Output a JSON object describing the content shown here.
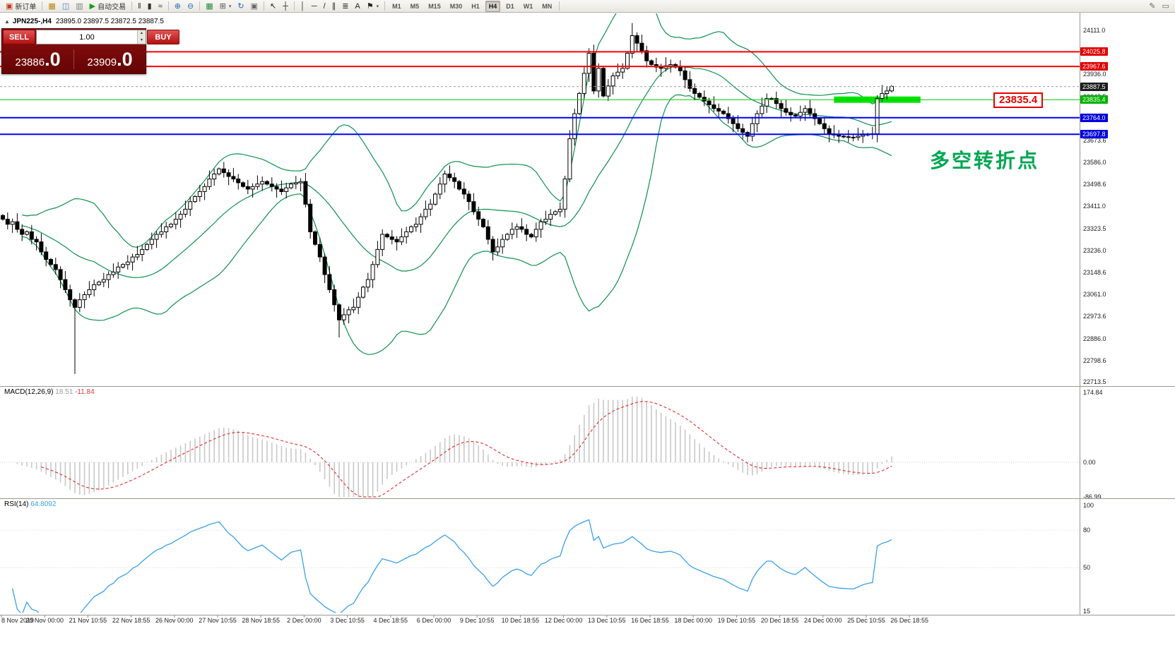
{
  "toolbar": {
    "items": [
      {
        "n": "new-order-button",
        "g": "▣",
        "c": "#c0392b",
        "t": "新订单"
      },
      {
        "sep": true
      },
      {
        "n": "chart-window-button",
        "g": "▦",
        "c": "#b8860b"
      },
      {
        "n": "profiles-button",
        "g": "◫",
        "c": "#3d7dbf"
      },
      {
        "n": "data-window-button",
        "g": "▥",
        "c": "#808080"
      },
      {
        "n": "auto-trading-button",
        "g": "▶",
        "c": "#17a017",
        "t": "自动交易"
      },
      {
        "sep": true
      },
      {
        "n": "bars-chart-button",
        "g": "‖",
        "c": "#333333"
      },
      {
        "n": "candlestick-chart-button",
        "g": "▮",
        "c": "#333333"
      },
      {
        "n": "line-chart-button",
        "g": "≈",
        "c": "#333333"
      },
      {
        "sep": true
      },
      {
        "n": "zoom-in-button",
        "g": "⊕",
        "c": "#2a6db5"
      },
      {
        "n": "zoom-out-button",
        "g": "⊖",
        "c": "#2a6db5"
      },
      {
        "sep": true
      },
      {
        "n": "tile-windows-button",
        "g": "▦",
        "c": "#2a8a3a"
      },
      {
        "n": "new-chart-button",
        "g": "⊞",
        "c": "#555555",
        "caret": true
      },
      {
        "n": "refresh-button",
        "g": "↻",
        "c": "#1565c0"
      },
      {
        "n": "snapshot-button",
        "g": "▣",
        "c": "#666666"
      },
      {
        "sep": true
      },
      {
        "n": "cursor-button",
        "g": "↖",
        "c": "#222222"
      },
      {
        "n": "crosshair-button",
        "g": "┼",
        "c": "#222222"
      },
      {
        "sep": true
      },
      {
        "n": "vertical-line-button",
        "g": "│",
        "c": "#222222"
      },
      {
        "n": "horizontal-line-button",
        "g": "─",
        "c": "#222222"
      },
      {
        "n": "trendline-button",
        "g": "/",
        "c": "#222222"
      },
      {
        "n": "channel-button",
        "g": "∥",
        "c": "#222222"
      },
      {
        "n": "fibonacci-button",
        "g": "≣",
        "c": "#222222"
      },
      {
        "n": "text-button",
        "g": "A",
        "c": "#222222"
      },
      {
        "n": "arrows-button",
        "g": "⚑",
        "c": "#222222",
        "caret": true
      },
      {
        "sep": true
      },
      {
        "tf": true
      },
      {
        "sep": true
      }
    ],
    "timeframes": [
      "M1",
      "M5",
      "M15",
      "M30",
      "H1",
      "H4",
      "D1",
      "W1",
      "MN"
    ],
    "active_timeframe": "H4",
    "right_items": [
      {
        "n": "pencil-button",
        "g": "✎",
        "c": "#666666"
      },
      {
        "n": "docking-button",
        "g": "▭",
        "c": "#666666"
      }
    ]
  },
  "trade_panel": {
    "sell_label": "SELL",
    "buy_label": "BUY",
    "volume": "1.00",
    "spin_up_icon": "▴",
    "spin_down_icon": "▾",
    "sell_price_main": "23886",
    "sell_price_frac": ".0",
    "buy_price_main": "23909",
    "buy_price_frac": ".0"
  },
  "chart": {
    "collapse_icon": "▲",
    "symbol": "JPN225-,H4",
    "ohlc_text": "23895.0 23897.5 23872.5 23887.5",
    "annotation": "多空转折点",
    "annotation_color": "#00a651",
    "price_flag": "23835.4",
    "price_flag_color": "#e60000"
  },
  "chart_data": {
    "type": "candlestick",
    "symbol": "JPN225-",
    "timeframe": "H4",
    "ohlc": {
      "open": 23895.0,
      "high": 23897.5,
      "low": 23872.5,
      "close": 23887.5
    },
    "y_range": {
      "top": 24111.0,
      "bottom": 22713.5
    },
    "price_axis_labels": [
      24111.0,
      24023.5,
      23936.0,
      23848.5,
      23761.0,
      23673.6,
      23586.0,
      23498.6,
      23411.0,
      23323.5,
      23236.0,
      23148.6,
      23061.0,
      22973.6,
      22886.0,
      22798.6,
      22713.5
    ],
    "closes": [
      23360,
      23340,
      23350,
      23320,
      23300,
      23310,
      23280,
      23270,
      23230,
      23200,
      23180,
      23160,
      23120,
      23080,
      23040,
      23010,
      23040,
      23060,
      23080,
      23100,
      23110,
      23120,
      23140,
      23150,
      23170,
      23180,
      23190,
      23210,
      23220,
      23240,
      23260,
      23280,
      23300,
      23310,
      23330,
      23340,
      23360,
      23380,
      23400,
      23430,
      23450,
      23470,
      23490,
      23520,
      23540,
      23560,
      23545,
      23530,
      23520,
      23505,
      23490,
      23480,
      23490,
      23500,
      23510,
      23500,
      23490,
      23480,
      23470,
      23485,
      23500,
      23505,
      23510,
      23420,
      23310,
      23260,
      23210,
      23140,
      23080,
      23020,
      22960,
      22980,
      23000,
      23010,
      23050,
      23090,
      23120,
      23180,
      23240,
      23300,
      23290,
      23280,
      23270,
      23290,
      23310,
      23330,
      23340,
      23370,
      23400,
      23420,
      23460,
      23500,
      23540,
      23525,
      23510,
      23480,
      23460,
      23430,
      23390,
      23360,
      23330,
      23280,
      23230,
      23250,
      23280,
      23300,
      23320,
      23330,
      23320,
      23300,
      23290,
      23320,
      23350,
      23360,
      23380,
      23390,
      23400,
      23520,
      23680,
      23780,
      23860,
      23940,
      24020,
      23870,
      23960,
      23850,
      23890,
      23930,
      23945,
      23960,
      24020,
      24090,
      24060,
      24030,
      23990,
      23975,
      23965,
      23960,
      23970,
      23975,
      23965,
      23950,
      23915,
      23880,
      23860,
      23845,
      23830,
      23815,
      23800,
      23790,
      23780,
      23760,
      23740,
      23720,
      23705,
      23690,
      23740,
      23780,
      23810,
      23840,
      23840,
      23820,
      23800,
      23785,
      23775,
      23770,
      23785,
      23800,
      23780,
      23760,
      23740,
      23720,
      23700,
      23695,
      23690,
      23688,
      23686,
      23685,
      23690,
      23695,
      23698,
      23700,
      23840,
      23860,
      23870,
      23887.5
    ],
    "spike_wicks": {
      "15": {
        "low": 22745
      },
      "70": {
        "low": 22890
      },
      "122": {
        "high": 24040
      },
      "131": {
        "high": 24140
      },
      "155": {
        "low": 23665
      },
      "177": {
        "low": 23670
      }
    },
    "bollinger": {
      "period": 20,
      "deviation": 2,
      "color": "#0e8f4e"
    },
    "hlines": [
      {
        "price": 24025.8,
        "color": "#ff0000",
        "width": 2,
        "badge": "#e00000"
      },
      {
        "price": 23967.6,
        "color": "#ff0000",
        "width": 2,
        "badge": "#e00000"
      },
      {
        "price": 23835.4,
        "color": "#00cc00",
        "width": 1,
        "badge": "#00b300"
      },
      {
        "price": 23764.0,
        "color": "#0000ff",
        "width": 2,
        "badge": "#0000dd"
      },
      {
        "price": 23697.8,
        "color": "#0000ff",
        "width": 2,
        "badge": "#0000dd"
      }
    ],
    "current_price": {
      "value": 23887.5,
      "badge": "#1c1c1c"
    },
    "highlight_bar": {
      "price": 23835.4,
      "start_index": 173,
      "end_index": 191,
      "color": "#00e400"
    },
    "macd": {
      "label": "MACD(12,26,9)",
      "value_main": "18.51",
      "value_signal": "-11.84",
      "axis_labels": [
        "174.84",
        "0.00",
        "-86.99"
      ],
      "fast": 12,
      "slow": 26,
      "signal": 9,
      "histogram_color": "#c8c8c8",
      "signal_color": "#e53935"
    },
    "rsi": {
      "label": "RSI(14)",
      "value": "64.8092",
      "period": 14,
      "axis_labels": [
        "100",
        "80",
        "50",
        "15"
      ],
      "color": "#3aa0e8"
    },
    "time_labels": [
      "8 Nov 2019",
      "20 Nov 00:00",
      "21 Nov 10:55",
      "22 Nov 18:55",
      "26 Nov 00:00",
      "27 Nov 10:55",
      "28 Nov 18:55",
      "2 Dec 00:00",
      "3 Dec 10:55",
      "4 Dec 18:55",
      "6 Dec 00:00",
      "9 Dec 10:55",
      "10 Dec 18:55",
      "12 Dec 00:00",
      "13 Dec 10:55",
      "16 Dec 18:55",
      "18 Dec 00:00",
      "19 Dec 10:55",
      "20 Dec 18:55",
      "24 Dec 00:00",
      "25 Dec 10:55",
      "26 Dec 18:55"
    ]
  }
}
